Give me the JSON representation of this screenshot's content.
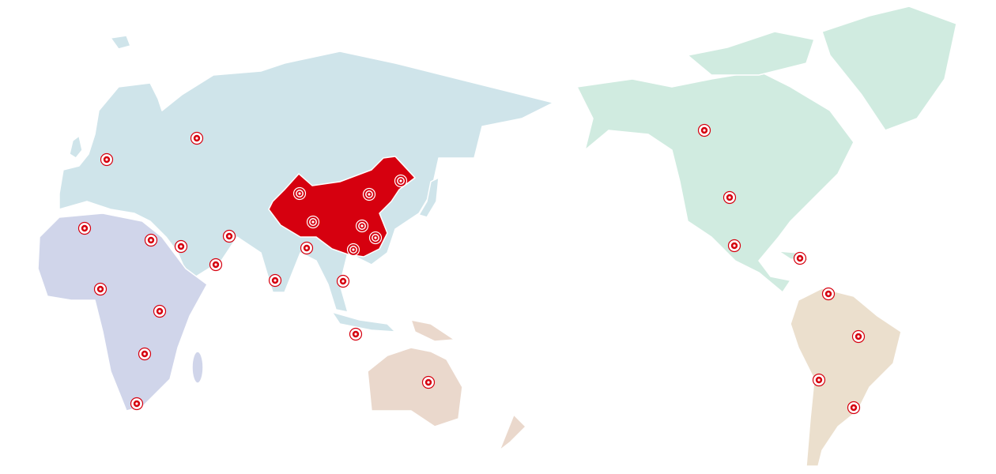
{
  "map": {
    "colors": {
      "eurasia": "#cfe4ea",
      "africa": "#d0d5ea",
      "oceania": "#ead8cc",
      "north_america": "#d0ebe0",
      "south_america": "#ebdfcd",
      "highlight_china": "#d6000f",
      "marker": "#d6000f",
      "marker_inner_on_highlight": "#ffffff"
    },
    "highlighted_region": "China",
    "marker_icon": "target-location-icon"
  }
}
